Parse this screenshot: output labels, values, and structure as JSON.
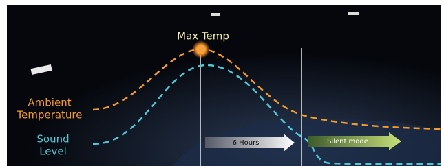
{
  "labels": {
    "max_temp": "Max Temp",
    "ambient": [
      "Ambient",
      "Temperature"
    ],
    "sound": [
      "Sound",
      "Level"
    ]
  },
  "arrows": {
    "duration": "6 Hours",
    "mode": "Silent mode"
  }
}
